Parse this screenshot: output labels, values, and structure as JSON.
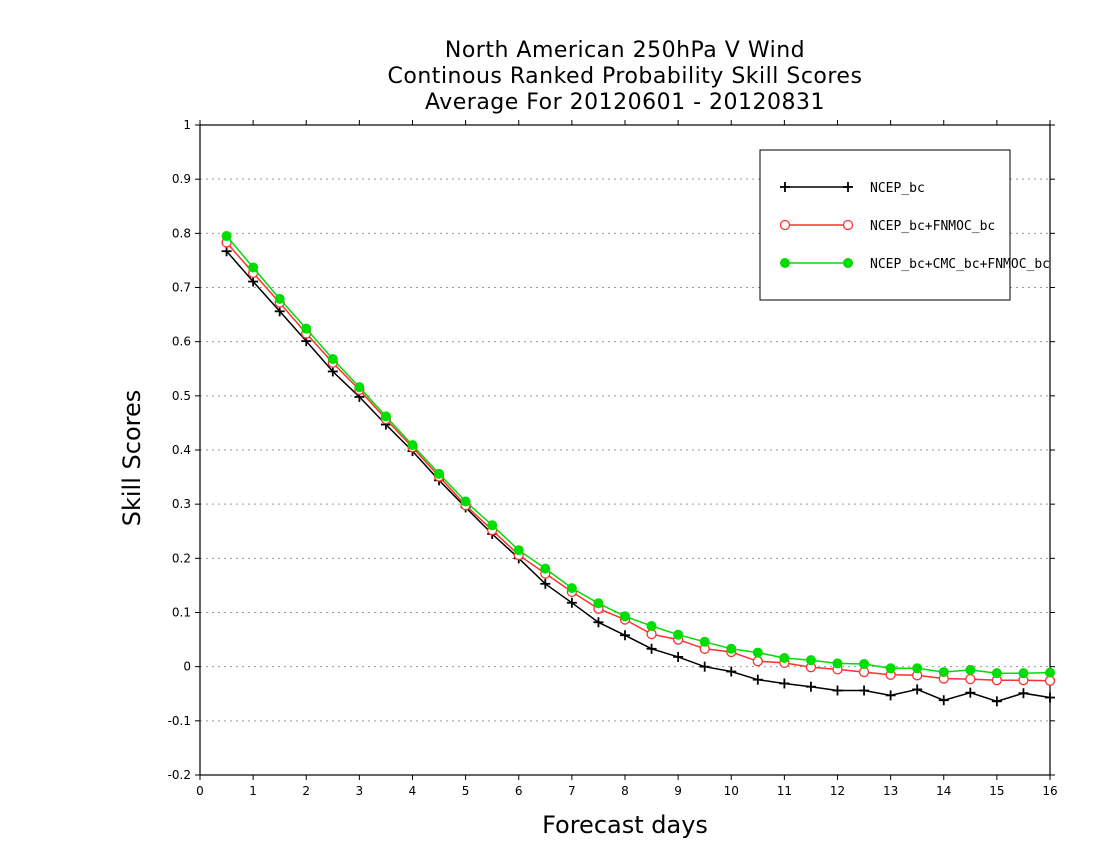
{
  "title": [
    "North American 250hPa V Wind",
    "Continous Ranked Probability Skill Scores",
    "Average For 20120601 - 20120831"
  ],
  "chart_data": {
    "type": "line",
    "xlabel": "Forecast days",
    "ylabel": "Skill Scores",
    "xlim": [
      0,
      16
    ],
    "ylim": [
      -0.2,
      1
    ],
    "xticks": [
      0,
      1,
      2,
      3,
      4,
      5,
      6,
      7,
      8,
      9,
      10,
      11,
      12,
      13,
      14,
      15,
      16
    ],
    "yticks": [
      -0.2,
      -0.1,
      0,
      0.1,
      0.2,
      0.3,
      0.4,
      0.5,
      0.6,
      0.7,
      0.8,
      0.9,
      1
    ],
    "ytick_labels": [
      "-0.2",
      "-0.1",
      "0",
      "0.1",
      "0.2",
      "0.3",
      "0.4",
      "0.5",
      "0.6",
      "0.7",
      "0.8",
      "0.9",
      "1"
    ],
    "grid": "horizontal dotted",
    "legend_position": "top-right",
    "x": [
      0.5,
      1.0,
      1.5,
      2.0,
      2.5,
      3.0,
      3.5,
      4.0,
      4.5,
      5.0,
      5.5,
      6.0,
      6.5,
      7.0,
      7.5,
      8.0,
      8.5,
      9.0,
      9.5,
      10.0,
      10.5,
      11.0,
      11.5,
      12.0,
      12.5,
      13.0,
      13.5,
      14.0,
      14.5,
      15.0,
      15.5,
      16.0
    ],
    "series": [
      {
        "name": "NCEP_bc",
        "color": "#000000",
        "marker": "plus",
        "values": [
          0.767,
          0.711,
          0.656,
          0.601,
          0.545,
          0.498,
          0.447,
          0.398,
          0.344,
          0.294,
          0.245,
          0.2,
          0.153,
          0.118,
          0.082,
          0.058,
          0.033,
          0.018,
          0.0,
          -0.009,
          -0.024,
          -0.031,
          -0.037,
          -0.044,
          -0.044,
          -0.053,
          -0.042,
          -0.062,
          -0.048,
          -0.064,
          -0.049,
          -0.057
        ]
      },
      {
        "name": "NCEP_bc+FNMOC_bc",
        "color": "#ff3030",
        "marker": "open-circle",
        "values": [
          0.783,
          0.727,
          0.672,
          0.615,
          0.561,
          0.511,
          0.457,
          0.405,
          0.351,
          0.298,
          0.252,
          0.206,
          0.172,
          0.138,
          0.107,
          0.087,
          0.06,
          0.05,
          0.033,
          0.027,
          0.01,
          0.007,
          -0.001,
          -0.005,
          -0.01,
          -0.015,
          -0.016,
          -0.022,
          -0.023,
          -0.025,
          -0.025,
          -0.026
        ]
      },
      {
        "name": "NCEP_bc+CMC_bc+FNMOC_bc",
        "color": "#00dd00",
        "marker": "filled-circle",
        "values": [
          0.795,
          0.737,
          0.679,
          0.624,
          0.568,
          0.516,
          0.462,
          0.409,
          0.356,
          0.305,
          0.261,
          0.215,
          0.181,
          0.145,
          0.117,
          0.093,
          0.075,
          0.059,
          0.046,
          0.033,
          0.026,
          0.016,
          0.012,
          0.006,
          0.005,
          -0.003,
          -0.003,
          -0.01,
          -0.006,
          -0.012,
          -0.012,
          -0.011
        ]
      }
    ]
  }
}
